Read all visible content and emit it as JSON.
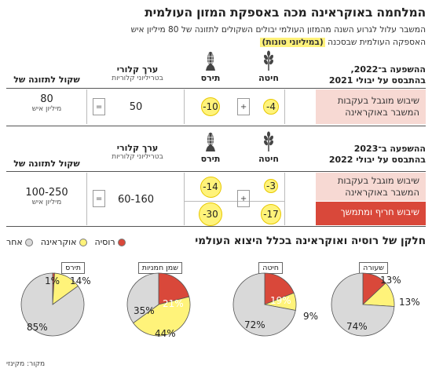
{
  "header": {
    "title": "המלחמה באוקראינה מכה באספקת המזון העולמית",
    "subtitle_line1": "המשבר עלול לגרוע השנה מהמזון העולמי יבולים השקולים לתזונה של 80 מיליון איש",
    "subtitle_line2_before": "האספקה העולמית שבסכנה ",
    "subtitle_line2_highlight": "(במיליוני טונות)"
  },
  "crops": {
    "wheat": "חיטה",
    "corn": "תירס",
    "wheat_icon": "wheat-icon",
    "corn_icon": "corn-icon"
  },
  "table_2022": {
    "header_line1": "ההשפעה ב־2022,",
    "header_line2": "בהתבסס על יבולי 2021",
    "caloric_header": "ערך קלורי",
    "caloric_unit": "בטריליוני קלוריות",
    "equiv_header": "שקול לתזונה של",
    "row_label": "שיבוש מוגבל בעקבות המשבר באוקראינה",
    "wheat_value": "-4",
    "corn_value": "-10",
    "plus": "+",
    "equals": "=",
    "caloric_value": "50",
    "equiv_value": "80",
    "equiv_unit": "מיליון איש"
  },
  "table_2023": {
    "header_line1": "ההשפעה ב־2023",
    "header_line2": "בהתבסס על יבולי 2022",
    "caloric_header": "ערך קלורי",
    "caloric_unit": "בטריליוני קלוריות",
    "equiv_header": "שקול לתזונה של",
    "row1_label": "שיבוש מוגבל בעקבות המשבר באוקראינה",
    "row2_label": "שיבוש חריף ומתמשך",
    "row1_wheat": "-3",
    "row1_corn": "-14",
    "row2_wheat": "-17",
    "row2_corn": "-30",
    "plus": "+",
    "equals": "=",
    "caloric_value": "60-160",
    "equiv_value": "100-250",
    "equiv_unit": "מיליון איש"
  },
  "pies_section": {
    "title": "חלקן של רוסיה ואוקראינה בכלל היצוא העולמי",
    "legend": [
      {
        "label": "רוסיה",
        "color": "#d9483a"
      },
      {
        "label": "אוקראינה",
        "color": "#fff37a"
      },
      {
        "label": "אחר",
        "color": "#d9d9d9"
      }
    ]
  },
  "chart_data": {
    "type": "pie",
    "colors": {
      "russia": "#d9483a",
      "ukraine": "#fff37a",
      "other": "#d9d9d9"
    },
    "series_names": [
      "רוסיה",
      "אוקראינה",
      "אחר"
    ],
    "pies": [
      {
        "name": "שעורה",
        "russia": 13,
        "ukraine": 13,
        "other": 74
      },
      {
        "name": "חיטה",
        "russia": 19,
        "ukraine": 9,
        "other": 72
      },
      {
        "name": "שמן חמניות",
        "russia": 21,
        "ukraine": 44,
        "other": 35
      },
      {
        "name": "תירס",
        "russia": 1,
        "ukraine": 14,
        "other": 85
      }
    ]
  },
  "footer": {
    "source": "מקור: מקינזי"
  }
}
